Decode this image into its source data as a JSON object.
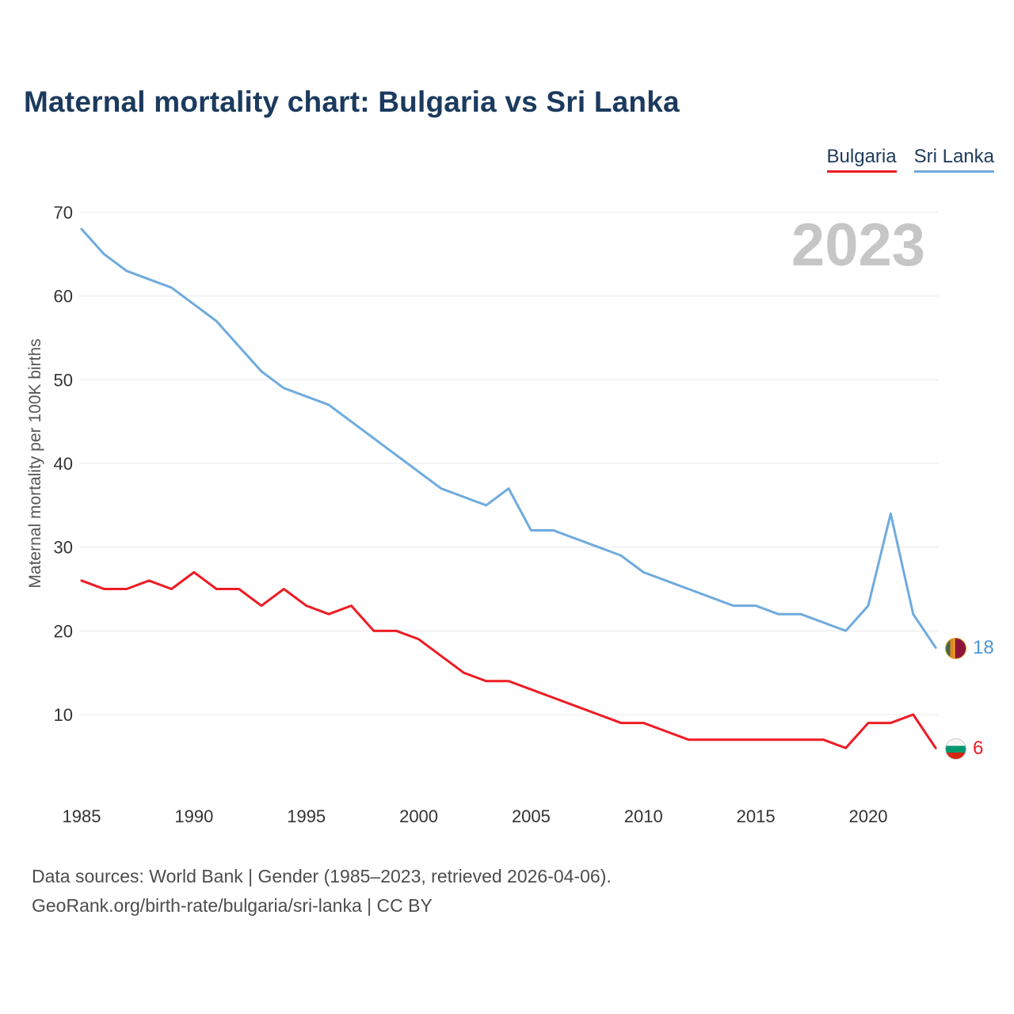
{
  "title": "Maternal mortality chart: Bulgaria vs Sri Lanka",
  "watermark": "2023",
  "legend": [
    {
      "label": "Bulgaria",
      "color": "#ed1c24"
    },
    {
      "label": "Sri Lanka",
      "color": "#6fabde"
    }
  ],
  "end_labels": {
    "sri_lanka": "18",
    "bulgaria": "6"
  },
  "footer": {
    "line1": "Data sources: World Bank | Gender (1985–2023, retrieved 2026-04-06).",
    "line2": "GeoRank.org/birth-rate/bulgaria/sri-lanka | CC BY"
  },
  "chart_data": {
    "type": "line",
    "title": "Maternal mortality chart: Bulgaria vs Sri Lanka",
    "xlabel": "",
    "ylabel": "Maternal mortality per 100K births",
    "x": [
      1985,
      1986,
      1987,
      1988,
      1989,
      1990,
      1991,
      1992,
      1993,
      1994,
      1995,
      1996,
      1997,
      1998,
      1999,
      2000,
      2001,
      2002,
      2003,
      2004,
      2005,
      2006,
      2007,
      2008,
      2009,
      2010,
      2011,
      2012,
      2013,
      2014,
      2015,
      2016,
      2017,
      2018,
      2019,
      2020,
      2021,
      2022,
      2023
    ],
    "series": [
      {
        "name": "Bulgaria",
        "color": "#ed1c24",
        "values": [
          26,
          25,
          25,
          26,
          25,
          27,
          25,
          25,
          23,
          25,
          23,
          22,
          23,
          20,
          20,
          19,
          17,
          15,
          14,
          14,
          13,
          12,
          11,
          10,
          9,
          9,
          8,
          7,
          7,
          7,
          7,
          7,
          7,
          7,
          6,
          9,
          9,
          10,
          6
        ]
      },
      {
        "name": "Sri Lanka",
        "color": "#6fabde",
        "values": [
          68,
          65,
          63,
          62,
          61,
          59,
          57,
          54,
          51,
          49,
          48,
          47,
          45,
          43,
          41,
          39,
          37,
          36,
          35,
          37,
          32,
          32,
          31,
          30,
          29,
          27,
          26,
          25,
          24,
          23,
          23,
          22,
          22,
          21,
          20,
          23,
          34,
          22,
          18
        ]
      }
    ],
    "ylim": [
      4,
      71
    ],
    "y_ticks": [
      10,
      20,
      30,
      40,
      50,
      60,
      70
    ],
    "x_ticks": [
      1985,
      1990,
      1995,
      2000,
      2005,
      2010,
      2015,
      2020
    ],
    "grid": "horizontal",
    "legend_position": "top-right",
    "end_values": {
      "Bulgaria": 6,
      "Sri Lanka": 18
    }
  }
}
